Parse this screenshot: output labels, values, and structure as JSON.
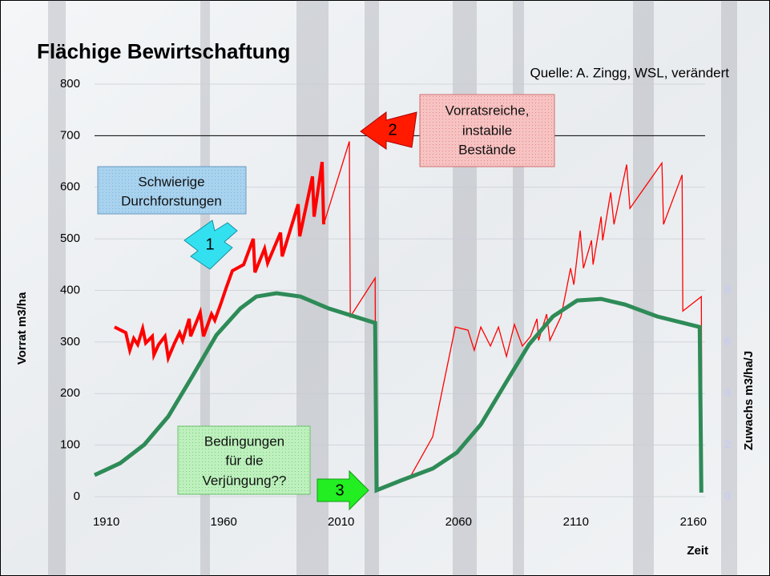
{
  "chart_data": {
    "type": "line",
    "title": "Flächige Bewirtschaftung",
    "source": "Quelle: A. Zingg, WSL, verändert",
    "xlabel": "Zeit",
    "ylabel": "Vorrat m3/ha",
    "y2label": "Zuwachs m3/ha/J",
    "xlim": [
      1905,
      2165
    ],
    "xticks": [
      1910,
      1960,
      2010,
      2060,
      2110,
      2160
    ],
    "ylim": [
      0,
      800
    ],
    "yticks": [
      0,
      100,
      200,
      300,
      400,
      500,
      600,
      700,
      800
    ],
    "y2lim": [
      0,
      16
    ],
    "y2ticks": [
      0,
      2,
      4,
      6,
      8
    ],
    "grid": true,
    "reference_line": 700,
    "series": [
      {
        "color": "#ff0000",
        "width": 4,
        "x": [
          1913.5,
          1918.3,
          1920,
          1921.7,
          1923.4,
          1925.5,
          1926.8,
          1929.6,
          1930.3,
          1932.3,
          1935,
          1936.4,
          1939.1,
          1941.2,
          1942.5,
          1945.3,
          1945.9,
          1950,
          1951.4,
          1954.8,
          1956.2,
          1958.9,
          1961,
          1963.7,
          1968.5,
          1972.6,
          1973.3,
          1977.4,
          1978.7,
          1984.2,
          1984.9,
          1991.7,
          1992.4,
          1997.8,
          1998.5,
          2001.9,
          2002.6
        ],
        "values": [
          329,
          318,
          284,
          307,
          295,
          326,
          298,
          311,
          275,
          295,
          311,
          269,
          298,
          318,
          303,
          345,
          311,
          357,
          311,
          354,
          342,
          376,
          404,
          438,
          450,
          500,
          435,
          481,
          453,
          512,
          466,
          567,
          505,
          621,
          543,
          649,
          528
        ]
      },
      {
        "color": "#ff0000",
        "width": 1.3,
        "x": [
          2002.6,
          2013.5,
          2013.9,
          2024.5,
          2024.8,
          2031.3,
          2039.5,
          2049,
          2058.6,
          2064,
          2066.7,
          2069.5,
          2073.6,
          2077,
          2080.4,
          2083.8,
          2087.2,
          2090.7,
          2093.4,
          2094.1,
          2097.5,
          2098.9,
          2103.6,
          2105.7,
          2107.7,
          2109.1,
          2111.8,
          2113.2,
          2116.6,
          2117.3,
          2120.7,
          2121.4,
          2124.8,
          2126.2,
          2131.6,
          2133,
          2146.6,
          2147.3,
          2155.2,
          2155.5,
          2163.4,
          2163.7
        ],
        "values": [
          528,
          689,
          349,
          424,
          12,
          23,
          39,
          116,
          329,
          323,
          284,
          329,
          292,
          329,
          272,
          334,
          292,
          311,
          345,
          303,
          354,
          303,
          349,
          396,
          443,
          411,
          516,
          443,
          497,
          450,
          543,
          497,
          590,
          528,
          644,
          559,
          647,
          528,
          624,
          360,
          388,
          8
        ]
      },
      {
        "color": "#2e8b57",
        "width": 5,
        "axis": "y2",
        "x": [
          1905,
          1915.9,
          1926.2,
          1936.4,
          1946.6,
          1956.9,
          1967.1,
          1973.9,
          1982.5,
          1992.7,
          2004.7,
          2024.5,
          2025.1,
          2035.3,
          2049,
          2059.3,
          2069.5,
          2079.7,
          2090,
          2100.2,
          2110.5,
          2120.7,
          2130.9,
          2144.6,
          2162.7,
          2163.4
        ],
        "values": [
          0.84,
          1.3,
          2.02,
          3.11,
          4.66,
          6.27,
          7.3,
          7.76,
          7.89,
          7.76,
          7.3,
          6.74,
          0.25,
          0.62,
          1.09,
          1.71,
          2.8,
          4.35,
          5.9,
          6.99,
          7.61,
          7.67,
          7.45,
          6.99,
          6.58,
          0.16
        ]
      }
    ],
    "annotations": [
      [
        "Schwierige",
        "Durchforstungen"
      ],
      [
        "Vorratsreiche,",
        "instabile",
        "Bestände"
      ],
      [
        "Bedingungen",
        "für die",
        "Verjüngung??"
      ]
    ],
    "arrow_labels": [
      "1",
      "2",
      "3"
    ]
  }
}
